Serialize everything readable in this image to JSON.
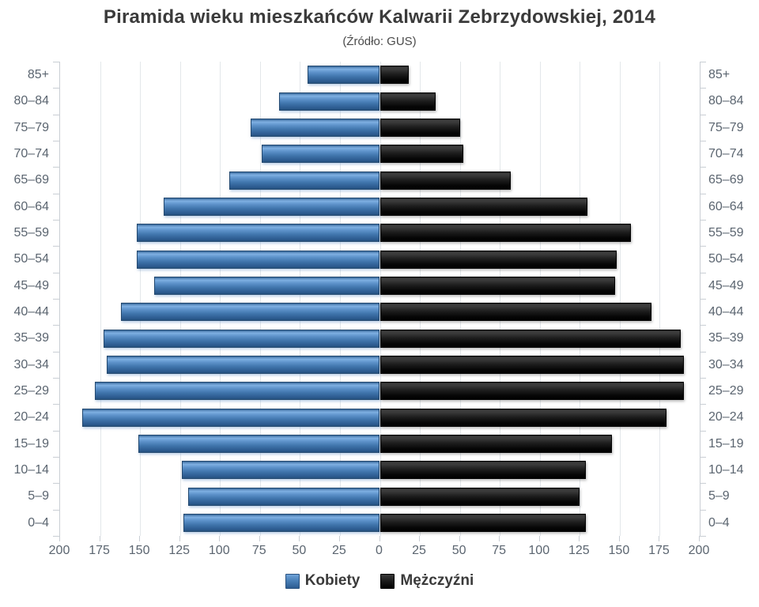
{
  "header": {
    "title": "Piramida wieku mieszkańców Kalwarii Zebrzydowskiej, 2014",
    "subtitle": "(Źródło: GUS)"
  },
  "legend": {
    "kobiety_label": "Kobiety",
    "mezczyzni_label": "Mężczyźni"
  },
  "colors": {
    "kobiety": "#4a80b8",
    "mezczyzni": "#141414",
    "axis_text": "#5b6570",
    "gridline": "#e3e7ea",
    "axis_line": "#c9ced4"
  },
  "chart_data": {
    "type": "bar",
    "variant": "population-pyramid",
    "title": "Piramida wieku mieszkańców Kalwarii Zebrzydowskiej, 2014",
    "subtitle": "(Źródło: GUS)",
    "categories": [
      "85+",
      "80–84",
      "75–79",
      "70–74",
      "65–69",
      "60–64",
      "55–59",
      "50–54",
      "45–49",
      "40–44",
      "35–39",
      "30–34",
      "25–29",
      "20–24",
      "15–19",
      "10–14",
      "5–9",
      "0–4"
    ],
    "series": [
      {
        "name": "Kobiety",
        "side": "left",
        "color": "#4a80b8",
        "values": [
          45,
          63,
          81,
          74,
          94,
          135,
          152,
          152,
          141,
          162,
          173,
          171,
          178,
          186,
          151,
          124,
          120,
          123
        ]
      },
      {
        "name": "Mężczyźni",
        "side": "right",
        "color": "#141414",
        "values": [
          18,
          35,
          50,
          52,
          82,
          130,
          157,
          148,
          147,
          170,
          188,
          190,
          190,
          179,
          145,
          129,
          125,
          129
        ]
      }
    ],
    "x_tick_labels": [
      "200",
      "175",
      "150",
      "125",
      "100",
      "75",
      "50",
      "25",
      "0",
      "25",
      "50",
      "75",
      "100",
      "125",
      "150",
      "175",
      "200"
    ],
    "axis_max_each_side": 200,
    "grid": true,
    "legend_position": "bottom"
  }
}
